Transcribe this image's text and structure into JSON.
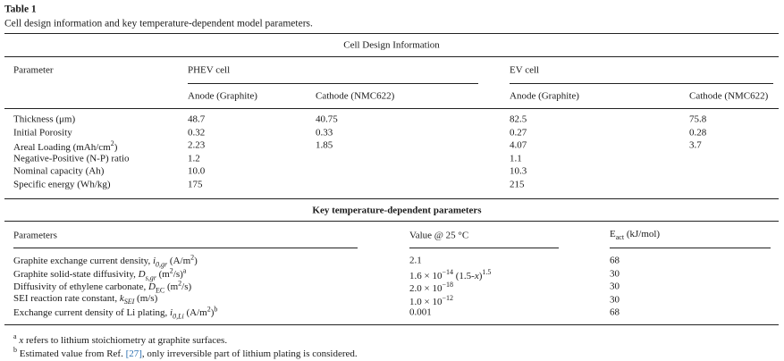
{
  "caption": {
    "label": "Table 1",
    "title": "Cell design information and key temperature-dependent model parameters."
  },
  "design": {
    "heading": "Cell Design Information",
    "param_header": "Parameter",
    "groups": [
      "PHEV cell",
      "EV cell"
    ],
    "columns": [
      "Anode (Graphite)",
      "Cathode (NMC622)",
      "Anode (Graphite)",
      "Cathode (NMC622)"
    ],
    "rows": [
      {
        "label": "Thickness (μm)",
        "values": [
          "48.7",
          "40.75",
          "82.5",
          "75.8"
        ]
      },
      {
        "label": "Initial Porosity",
        "values": [
          "0.32",
          "0.33",
          "0.27",
          "0.28"
        ]
      },
      {
        "label": [
          "Areal Loading (mAh/cm",
          {
            "t": "2",
            "s": "sup"
          },
          ")"
        ],
        "values": [
          "2.23",
          "1.85",
          "4.07",
          "3.7"
        ]
      },
      {
        "label": "Negative-Positive (N-P) ratio",
        "values": [
          "1.2",
          null,
          "1.1",
          null
        ]
      },
      {
        "label": "Nominal capacity (Ah)",
        "values": [
          "10.0",
          null,
          "10.3",
          null
        ]
      },
      {
        "label": "Specific energy (Wh/kg)",
        "values": [
          "175",
          null,
          "215",
          null
        ]
      }
    ]
  },
  "params": {
    "heading": "Key temperature-dependent parameters",
    "headers": [
      "Parameters",
      "Value @ 25 °C",
      [
        "E",
        {
          "t": "act",
          "s": "sub"
        },
        " (kJ/mol)"
      ]
    ],
    "rows": [
      [
        [
          "Graphite exchange current density, ",
          {
            "t": "i",
            "s": "i"
          },
          {
            "t": "0,gr",
            "s": "sub-i"
          },
          " (A/m",
          {
            "t": "2",
            "s": "sup"
          },
          ")"
        ],
        "2.1",
        "68"
      ],
      [
        [
          "Graphite solid-state diffusivity, ",
          {
            "t": "D",
            "s": "i"
          },
          {
            "t": "s,gr",
            "s": "sub-i"
          },
          " (m",
          {
            "t": "2",
            "s": "sup"
          },
          "/s)",
          {
            "t": "a",
            "s": "sup"
          }
        ],
        [
          "1.6 × 10",
          {
            "t": "−14",
            "s": "sup"
          },
          " (1.5-",
          {
            "t": "x",
            "s": "i"
          },
          ")",
          {
            "t": "1.5",
            "s": "sup"
          }
        ],
        "30"
      ],
      [
        [
          "Diffusivity of ethylene carbonate, ",
          {
            "t": "D",
            "s": "i"
          },
          {
            "t": "EC",
            "s": "sub"
          },
          " (m",
          {
            "t": "2",
            "s": "sup"
          },
          "/s)"
        ],
        [
          "2.0 × 10",
          {
            "t": "−18",
            "s": "sup"
          }
        ],
        "30"
      ],
      [
        [
          "SEI reaction rate constant, ",
          {
            "t": "k",
            "s": "i"
          },
          {
            "t": "SEI",
            "s": "sub-i"
          },
          " (m/s)"
        ],
        [
          "1.0 × 10",
          {
            "t": "−12",
            "s": "sup"
          }
        ],
        "30"
      ],
      [
        [
          "Exchange current density of Li plating, ",
          {
            "t": "i",
            "s": "i"
          },
          {
            "t": "0,Li",
            "s": "sub-i"
          },
          " (A/m",
          {
            "t": "2",
            "s": "sup"
          },
          ")",
          {
            "t": "b",
            "s": "sup"
          }
        ],
        "0.001",
        "68"
      ]
    ]
  },
  "footnotes": [
    [
      {
        "t": "a",
        "s": "sup"
      },
      "  ",
      {
        "t": "x",
        "s": "i"
      },
      " refers to lithium stoichiometry at graphite surfaces."
    ],
    [
      {
        "t": "b",
        "s": "sup"
      },
      " Estimated value from Ref. ",
      {
        "t": "[27]",
        "s": "link"
      },
      ", only irreversible part of lithium plating is considered."
    ]
  ]
}
